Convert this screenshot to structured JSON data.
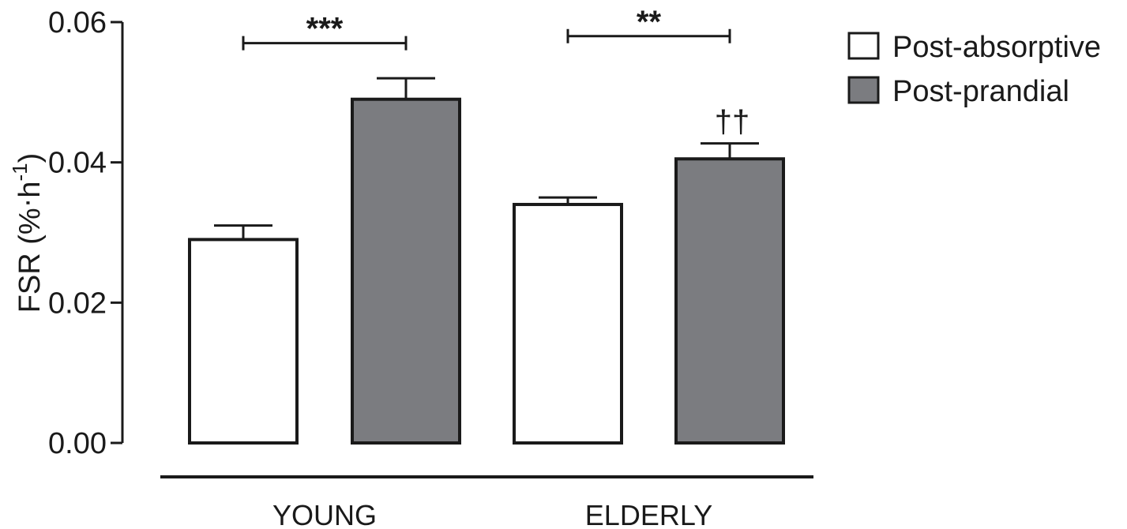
{
  "chart_data": {
    "type": "bar",
    "ylabel_main": "FSR (%",
    "ylabel_unit": "h",
    "ylabel_exp": "-1",
    "ylabel_close": ")",
    "ylim": [
      0,
      0.06
    ],
    "yticks": [
      "0.00",
      "0.02",
      "0.04",
      "0.06"
    ],
    "ytick_values": [
      0,
      0.02,
      0.04,
      0.06
    ],
    "categories": [
      "YOUNG",
      "ELDERLY"
    ],
    "series": [
      {
        "name": "Post-absorptive",
        "color": "#ffffff",
        "values": [
          0.029,
          0.034
        ],
        "errors": [
          0.002,
          0.001
        ]
      },
      {
        "name": "Post-prandial",
        "color": "#7b7c80",
        "values": [
          0.049,
          0.0405
        ],
        "errors": [
          0.003,
          0.0022
        ]
      }
    ],
    "significance": [
      {
        "category_index": 0,
        "label": "***",
        "y": 0.057
      },
      {
        "category_index": 1,
        "label": "**",
        "y": 0.058
      }
    ],
    "annotations": [
      {
        "label": "††",
        "category_index": 1,
        "series_index": 1
      }
    ],
    "legend_position": "top-right",
    "grid": false
  }
}
